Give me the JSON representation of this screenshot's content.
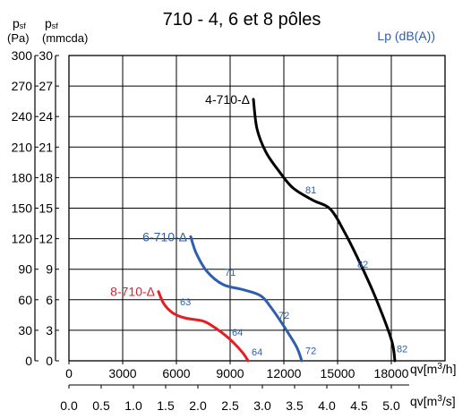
{
  "chart_data": {
    "type": "line",
    "title": "710 - 4, 6 et 8 pôles",
    "legend_title": "Lp (dB(A))",
    "y_axis_pa": {
      "label_symbol": "p",
      "label_sub": "sf",
      "unit": "(Pa)",
      "ticks": [
        0,
        30,
        60,
        90,
        120,
        150,
        180,
        210,
        240,
        270,
        300
      ]
    },
    "y_axis_mmcda": {
      "label_symbol": "p",
      "label_sub": "sf",
      "unit": "(mmcda)",
      "ticks": [
        0,
        3,
        6,
        9,
        12,
        15,
        18,
        21,
        24,
        27,
        30
      ]
    },
    "x_axis_m3h": {
      "label": "qv[m",
      "label_sup": "3",
      "label_end": "/h]",
      "ticks": [
        "0",
        "3000",
        "6000",
        "9000",
        "12000",
        "15000",
        "18000"
      ]
    },
    "x_axis_m3s": {
      "label": "qv[m",
      "label_sup": "3",
      "label_end": "/s]",
      "ticks": [
        "0.0",
        "0.5",
        "1.0",
        "1.5",
        "2.0",
        "2.5",
        "3.0",
        "3.5",
        "4.0",
        "4.5",
        "5.0"
      ]
    },
    "xlim": [
      0,
      21000
    ],
    "ylim": [
      0,
      30
    ],
    "grid": true,
    "series": [
      {
        "name": "4-710-Δ",
        "color": "#000000",
        "points": [
          [
            10300,
            25.7
          ],
          [
            10500,
            22.8
          ],
          [
            11000,
            20.5
          ],
          [
            11700,
            18.7
          ],
          [
            12500,
            17.0
          ],
          [
            13600,
            15.8
          ],
          [
            14600,
            14.9
          ],
          [
            15400,
            12.6
          ],
          [
            16200,
            9.8
          ],
          [
            17100,
            6.3
          ],
          [
            18000,
            2.1
          ],
          [
            18200,
            0
          ]
        ],
        "sound_labels": [
          {
            "text": "81",
            "at": [
              13200,
              16.8
            ]
          },
          {
            "text": "82",
            "at": [
              16100,
              9.5
            ]
          },
          {
            "text": "82",
            "at": [
              18300,
              1.2
            ]
          }
        ]
      },
      {
        "name": "6-710-Δ",
        "color": "#2e5fac",
        "points": [
          [
            6800,
            12.2
          ],
          [
            7100,
            10.6
          ],
          [
            7700,
            8.8
          ],
          [
            8600,
            7.5
          ],
          [
            9700,
            7.0
          ],
          [
            10700,
            6.4
          ],
          [
            11300,
            5.2
          ],
          [
            12000,
            3.4
          ],
          [
            12700,
            1.4
          ],
          [
            13000,
            0
          ]
        ],
        "sound_labels": [
          {
            "text": "71",
            "at": [
              8700,
              8.7
            ]
          },
          {
            "text": "72",
            "at": [
              11700,
              4.5
            ]
          },
          {
            "text": "72",
            "at": [
              13200,
              1.0
            ]
          }
        ]
      },
      {
        "name": "8-710-Δ",
        "color": "#e41e26",
        "points": [
          [
            5000,
            6.8
          ],
          [
            5300,
            5.6
          ],
          [
            5800,
            4.7
          ],
          [
            6500,
            4.2
          ],
          [
            7500,
            3.9
          ],
          [
            8200,
            3.2
          ],
          [
            9000,
            2.1
          ],
          [
            9700,
            0.8
          ],
          [
            10000,
            0
          ]
        ],
        "sound_labels": [
          {
            "text": "63",
            "at": [
              6200,
              5.8
            ]
          },
          {
            "text": "64",
            "at": [
              9100,
              2.8
            ]
          },
          {
            "text": "64",
            "at": [
              10200,
              0.9
            ]
          }
        ]
      }
    ]
  }
}
